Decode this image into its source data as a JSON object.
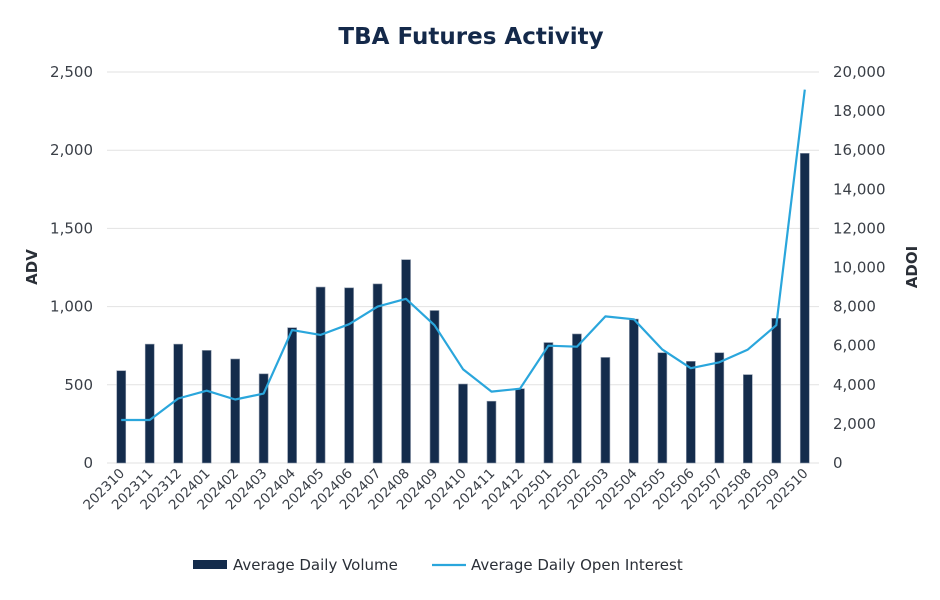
{
  "chart_data": {
    "type": "bar",
    "title": "TBA Futures Activity",
    "xlabel": "",
    "ylabel": "ADV",
    "y2label": "ADOI",
    "ylim": [
      0,
      2500
    ],
    "y2lim": [
      0,
      20000
    ],
    "yticks": [
      "0",
      "500",
      "1,000",
      "1,500",
      "2,000",
      "2,500"
    ],
    "ytick_values": [
      0,
      500,
      1000,
      1500,
      2000,
      2500
    ],
    "y2ticks": [
      "0",
      "2,000",
      "4,000",
      "6,000",
      "8,000",
      "10,000",
      "12,000",
      "14,000",
      "16,000",
      "18,000",
      "20,000"
    ],
    "y2tick_values": [
      0,
      2000,
      4000,
      6000,
      8000,
      10000,
      12000,
      14000,
      16000,
      18000,
      20000
    ],
    "grid": true,
    "legend_position": "bottom-center",
    "categories": [
      "202310",
      "202311",
      "202312",
      "202401",
      "202402",
      "202403",
      "202404",
      "202405",
      "202406",
      "202407",
      "202408",
      "202409",
      "202410",
      "202411",
      "202412",
      "202501",
      "202502",
      "202503",
      "202504",
      "202505",
      "202506",
      "202507",
      "202508",
      "202509",
      "202510"
    ],
    "series": [
      {
        "name": "Average Daily Volume",
        "type": "bar",
        "axis": "left",
        "color": "#142c4c",
        "values": [
          590,
          760,
          760,
          720,
          665,
          570,
          865,
          1125,
          1120,
          1145,
          1300,
          975,
          505,
          395,
          475,
          770,
          825,
          675,
          920,
          705,
          650,
          705,
          565,
          925,
          1980
        ]
      },
      {
        "name": "Average Daily Open Interest",
        "type": "line",
        "axis": "right",
        "color": "#2aa6dc",
        "values": [
          2200,
          2200,
          3300,
          3700,
          3250,
          3550,
          6800,
          6550,
          7100,
          8000,
          8400,
          7050,
          4800,
          3650,
          3800,
          6000,
          5950,
          7500,
          7350,
          5800,
          4850,
          5150,
          5800,
          7050,
          19100
        ]
      }
    ]
  }
}
